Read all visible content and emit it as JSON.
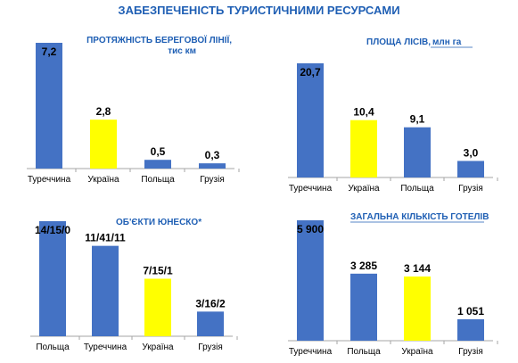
{
  "title": "ЗАБЕЗПЕЧЕНІСТЬ ТУРИСТИЧНИМИ РЕСУРСАМИ",
  "colors": {
    "bar": "#4472c4",
    "highlight": "#ffff00",
    "title": "#1f5fb4",
    "axis": "#a6a6a6"
  },
  "chart_data": [
    {
      "type": "bar",
      "title": "ПРОТЯЖНІСТЬ  БЕРЕГОВОЇ ЛІНІЇ,",
      "subtitle": "тис км",
      "categories": [
        "Туреччина",
        "Україна",
        "Польща",
        "Грузія"
      ],
      "values": [
        7.2,
        2.8,
        0.5,
        0.3
      ],
      "value_labels": [
        "7,2",
        "2,8",
        "0,5",
        "0,3"
      ],
      "highlight": "Україна",
      "ylim": [
        0,
        7.2
      ]
    },
    {
      "type": "bar",
      "title": "ПЛОЩА  ЛІСІВ,",
      "subtitle": "млн га",
      "categories": [
        "Туреччина",
        "Україна",
        "Польща",
        "Грузія"
      ],
      "values": [
        20.7,
        10.4,
        9.1,
        3.0
      ],
      "value_labels": [
        "20,7",
        "10,4",
        "9,1",
        "3,0"
      ],
      "highlight": "Україна",
      "ylim": [
        0,
        20.7
      ]
    },
    {
      "type": "bar",
      "title": "ОБ'ЄКТИ  ЮНЕСКО*",
      "subtitle": "",
      "categories": [
        "Польща",
        "Туреччина",
        "Україна",
        "Грузія"
      ],
      "values": [
        14,
        11,
        7,
        3
      ],
      "value_labels": [
        "14/15/0",
        "11/41/11",
        "7/15/1",
        "3/16/2"
      ],
      "highlight": "Україна",
      "ylim": [
        0,
        14
      ]
    },
    {
      "type": "bar",
      "title": "ЗАГАЛЬНА  КІЛЬКІСТЬ  ГОТЕЛІВ",
      "subtitle": "",
      "categories": [
        "Туреччина",
        "Польща",
        "Україна",
        "Грузія"
      ],
      "values": [
        5900,
        3285,
        3144,
        1051
      ],
      "value_labels": [
        "5 900",
        "3 285",
        "3 144",
        "1 051"
      ],
      "highlight": "Україна",
      "ylim": [
        0,
        5900
      ]
    }
  ]
}
